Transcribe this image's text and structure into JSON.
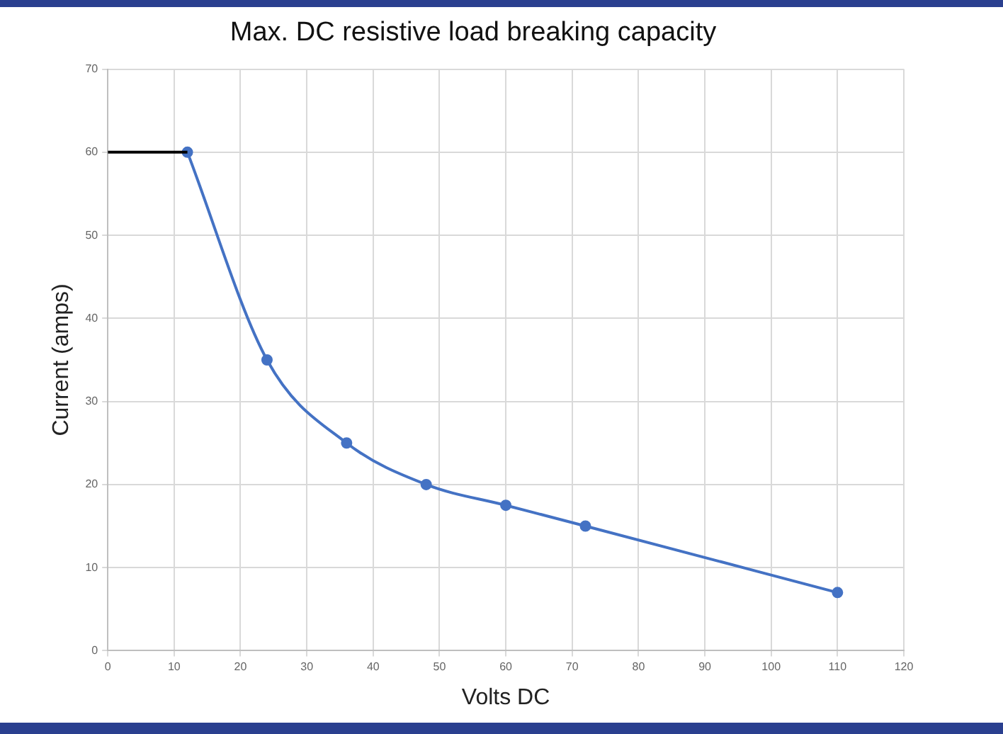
{
  "chart_data": {
    "type": "line",
    "title": "Max. DC resistive load breaking capacity",
    "xlabel": "Volts DC",
    "ylabel": "Current (amps)",
    "xlim": [
      0,
      120
    ],
    "xticks": [
      0,
      10,
      20,
      30,
      40,
      50,
      60,
      70,
      80,
      90,
      100,
      110,
      120
    ],
    "ylim": [
      0,
      70
    ],
    "yticks": [
      0,
      10,
      20,
      30,
      40,
      50,
      60,
      70
    ],
    "grid": true,
    "legend": false,
    "series": [
      {
        "color": "#000000",
        "x": [
          0,
          12
        ],
        "values": [
          60,
          60
        ],
        "marker": "none"
      },
      {
        "color": "#4472c4",
        "x": [
          12,
          24,
          36,
          48,
          60,
          72,
          110
        ],
        "values": [
          60,
          35,
          25,
          20,
          17.5,
          15,
          7
        ],
        "marker": "circle"
      }
    ]
  }
}
